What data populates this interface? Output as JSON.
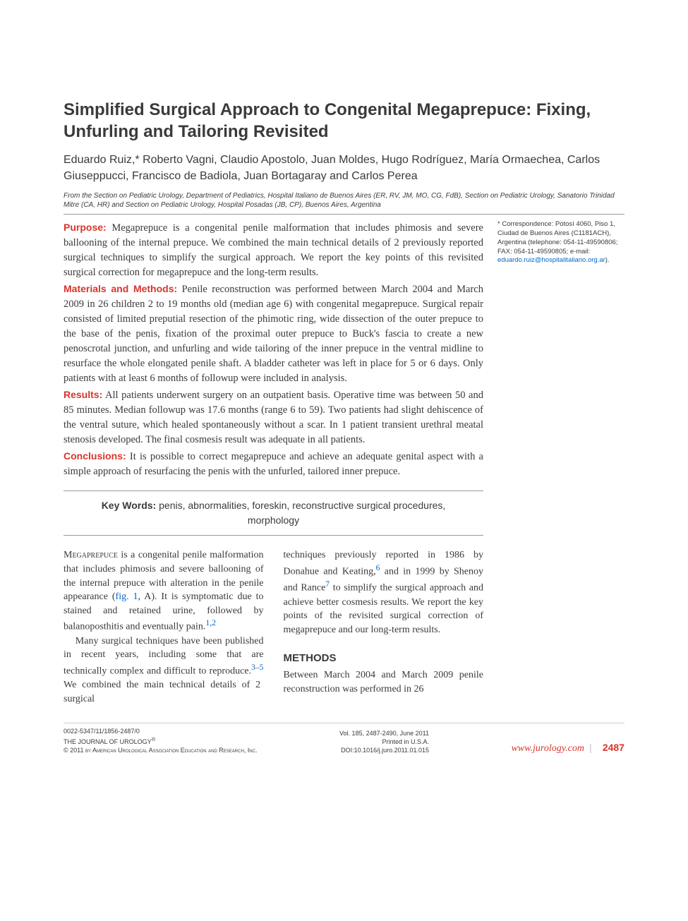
{
  "title": "Simplified Surgical Approach to Congenital Megaprepuce: Fixing, Unfurling and Tailoring Revisited",
  "authors": "Eduardo Ruiz,* Roberto Vagni, Claudio Apostolo, Juan Moldes, Hugo Rodríguez, María Ormaechea, Carlos Giuseppucci, Francisco de Badiola, Juan Bortagaray and Carlos Perea",
  "affiliation": "From the Section on Pediatric Urology, Department of Pediatrics, Hospital Italiano de Buenos Aires (ER, RV, JM, MO, CG, FdB), Section on Pediatric Urology, Sanatorio Trinidad Mitre (CA, HR) and Section on Pediatric Urology, Hospital Posadas (JB, CP), Buenos Aires, Argentina",
  "correspondence": {
    "text": "* Correspondence: Potosí 4060, Piso 1, Ciudad de Buenos Aires (C1181ACH), Argentina (telephone: 054-11-49590806; FAX: 054-11-49590805; e-mail: ",
    "email": "eduardo.ruiz@hospitalitaliano.org.ar",
    "close": ")."
  },
  "abstract": {
    "purpose_label": "Purpose:",
    "purpose": " Megaprepuce is a congenital penile malformation that includes phimosis and severe ballooning of the internal prepuce. We combined the main technical details of 2 previously reported surgical techniques to simplify the surgical approach. We report the key points of this revisited surgical correction for megaprepuce and the long-term results.",
    "methods_label": "Materials and Methods:",
    "methods": " Penile reconstruction was performed between March 2004 and March 2009 in 26 children 2 to 19 months old (median age 6) with congenital megaprepuce. Surgical repair consisted of limited preputial resection of the phimotic ring, wide dissection of the outer prepuce to the base of the penis, fixation of the proximal outer prepuce to Buck's fascia to create a new penoscrotal junction, and unfurling and wide tailoring of the inner prepuce in the ventral midline to resurface the whole elongated penile shaft. A bladder catheter was left in place for 5 or 6 days. Only patients with at least 6 months of followup were included in analysis.",
    "results_label": "Results:",
    "results": " All patients underwent surgery on an outpatient basis. Operative time was between 50 and 85 minutes. Median followup was 17.6 months (range 6 to 59). Two patients had slight dehiscence of the ventral suture, which healed spontaneously without a scar. In 1 patient transient urethral meatal stenosis developed. The final cosmesis result was adequate in all patients.",
    "conclusions_label": "Conclusions:",
    "conclusions": " It is possible to correct megaprepuce and achieve an adequate genital aspect with a simple approach of resurfacing the penis with the unfurled, tailored inner prepuce."
  },
  "keywords": {
    "label": "Key Words:",
    "text": " penis, abnormalities, foreskin, reconstructive surgical procedures, morphology"
  },
  "body": {
    "col1p1a": "Megaprepuce",
    "col1p1b": " is a congenital penile malformation that includes phimosis and severe ballooning of the internal prepuce with alteration in the penile appearance (",
    "fig_link": "fig. 1",
    "col1p1c": ", A). It is symptomatic due to stained and retained urine, followed by balanoposthitis and eventually pain.",
    "ref12": "1,2",
    "col1p2a": "Many surgical techniques have been published in recent years, including some that are technically complex and difficult to reproduce.",
    "ref35": "3–5",
    "col1p2b": " We combined the main technical details of 2 surgical",
    "col2p1a": "techniques previously reported in 1986 by Donahue and Keating,",
    "ref6": "6",
    "col2p1b": " and in 1999 by Shenoy and Rance",
    "ref7": "7",
    "col2p1c": " to simplify the surgical approach and achieve better cosmesis results. We report the key points of the revisited surgical correction of megaprepuce and our long-term results.",
    "methods_heading": "METHODS",
    "methods_body": "Between March 2004 and March 2009 penile reconstruction was performed in 26"
  },
  "footer": {
    "l1": "0022-5347/11/1856-2487/0",
    "l2": "THE JOURNAL OF UROLOGY",
    "l3": "© 2011 by American Urological Association Education and Research, Inc.",
    "m1": "Vol. 185, 2487-2490, June 2011",
    "m2": "Printed in U.S.A.",
    "m3": "DOI:10.1016/j.juro.2011.01.015",
    "url": "www.jurology.com",
    "page": "2487"
  },
  "colors": {
    "accent": "#d9352b",
    "link": "#0066cc",
    "text": "#3a3a3a",
    "rule": "#999999",
    "bg": "#ffffff"
  },
  "fonts": {
    "heading_family": "Arial",
    "body_family": "Times New Roman",
    "title_size_pt": 18,
    "authors_size_pt": 12,
    "affiliation_size_pt": 7.5,
    "abstract_size_pt": 11,
    "body_size_pt": 10.5,
    "footer_size_pt": 7
  }
}
